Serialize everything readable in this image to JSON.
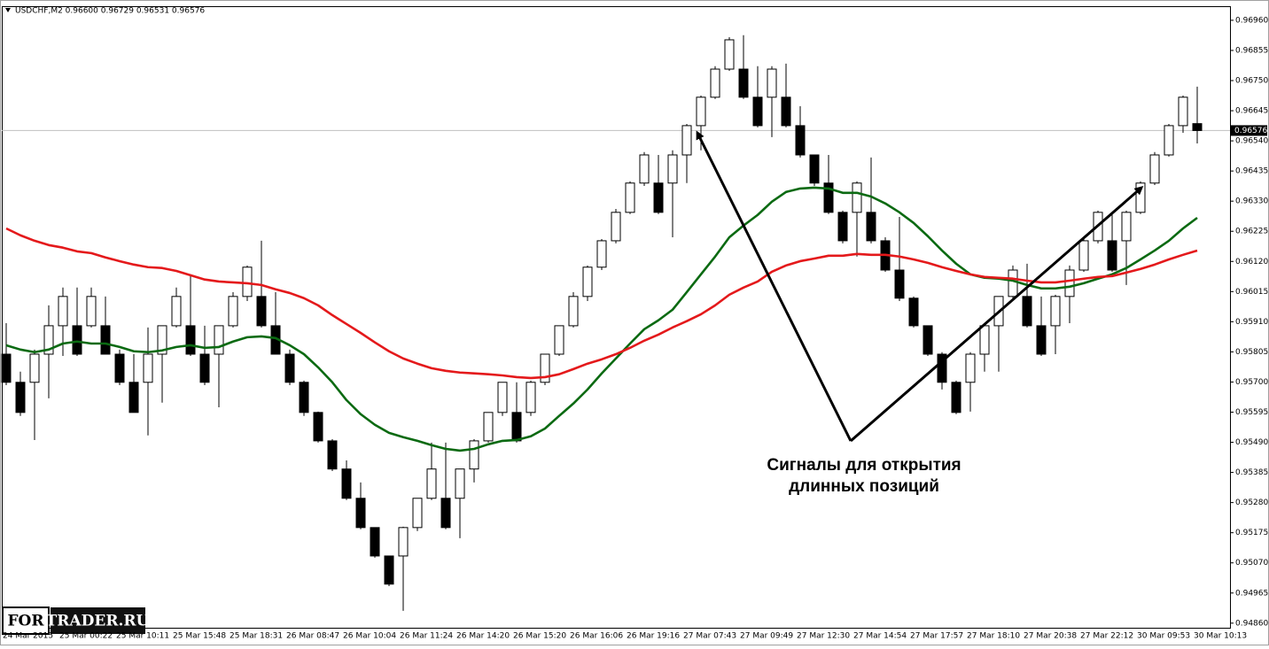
{
  "chart_data": {
    "type": "candlestick",
    "title": "USDCHF,M2  0.96600 0.96729 0.96531 0.96576",
    "annotation": [
      "Сигналы для открытия",
      "длинных позиций"
    ],
    "watermark": [
      "FOR",
      "TRADER.RU"
    ],
    "categories": [
      "24 Mar 2015",
      null,
      null,
      null,
      "25 Mar 00:22",
      null,
      null,
      null,
      "25 Mar 10:11",
      null,
      null,
      null,
      "25 Mar 15:48",
      null,
      null,
      null,
      "25 Mar 18:31",
      null,
      null,
      null,
      "26 Mar 08:47",
      null,
      null,
      null,
      "26 Mar 10:04",
      null,
      null,
      null,
      "26 Mar 11:24",
      null,
      null,
      null,
      "26 Mar 14:20",
      null,
      null,
      null,
      "26 Mar 15:20",
      null,
      null,
      null,
      "26 Mar 16:06",
      null,
      null,
      null,
      "26 Mar 19:16",
      null,
      null,
      null,
      "27 Mar 07:43",
      null,
      null,
      null,
      "27 Mar 09:49",
      null,
      null,
      null,
      "27 Mar 12:30",
      null,
      null,
      null,
      "27 Mar 14:54",
      null,
      null,
      null,
      "27 Mar 17:57",
      null,
      null,
      null,
      "27 Mar 18:10",
      null,
      null,
      null,
      "27 Mar 20:38",
      null,
      null,
      null,
      "27 Mar 22:12",
      null,
      null,
      null,
      "30 Mar 09:53",
      null,
      null,
      null,
      "30 Mar 10:13"
    ],
    "open": [
      0.95797,
      0.95699,
      0.95699,
      0.95797,
      0.95896,
      0.95896,
      0.95896,
      0.95896,
      0.95797,
      0.95699,
      0.95699,
      0.95797,
      0.95896,
      0.95896,
      0.95797,
      0.95797,
      0.95896,
      0.95998,
      0.95998,
      0.95896,
      0.95797,
      0.95699,
      0.95594,
      0.95495,
      0.95397,
      0.95295,
      0.95193,
      0.95094,
      0.95094,
      0.95193,
      0.95295,
      0.95295,
      0.95295,
      0.95397,
      0.95495,
      0.95594,
      0.95594,
      0.95594,
      0.95699,
      0.95797,
      0.95896,
      0.95998,
      0.961,
      0.96192,
      0.96291,
      0.96393,
      0.96393,
      0.96393,
      0.96491,
      0.96593,
      0.96692,
      0.9679,
      0.9679,
      0.96692,
      0.96692,
      0.96692,
      0.96593,
      0.96491,
      0.96393,
      0.96291,
      0.96291,
      0.96291,
      0.96192,
      0.9609,
      0.95992,
      0.95896,
      0.95797,
      0.95699,
      0.95699,
      0.95797,
      0.95896,
      0.95998,
      0.95998,
      0.95896,
      0.95896,
      0.95998,
      0.9609,
      0.96192,
      0.96192,
      0.96192,
      0.96291,
      0.96393,
      0.96491,
      0.96593,
      0.966
    ],
    "high": [
      0.95905,
      0.95736,
      0.95813,
      0.95967,
      0.96029,
      0.96029,
      0.96029,
      0.95998,
      0.95813,
      0.95797,
      0.9589,
      0.95896,
      0.96029,
      0.96075,
      0.95896,
      0.95896,
      0.96013,
      0.96106,
      0.96192,
      0.96013,
      0.95813,
      0.95705,
      0.95597,
      0.95501,
      0.95427,
      0.9535,
      0.95193,
      0.95094,
      0.95196,
      0.95295,
      0.95489,
      0.95489,
      0.95397,
      0.95501,
      0.95594,
      0.95699,
      0.95699,
      0.95705,
      0.95797,
      0.95896,
      0.96013,
      0.96106,
      0.96198,
      0.96303,
      0.96399,
      0.96501,
      0.96491,
      0.96507,
      0.96599,
      0.96698,
      0.968,
      0.96901,
      0.96908,
      0.968,
      0.968,
      0.96809,
      0.96661,
      0.96491,
      0.96491,
      0.96297,
      0.96399,
      0.96482,
      0.96204,
      0.96275,
      0.95998,
      0.95896,
      0.95804,
      0.95705,
      0.95804,
      0.95905,
      0.95998,
      0.96106,
      0.96112,
      0.95998,
      0.96004,
      0.96106,
      0.96204,
      0.96297,
      0.96291,
      0.96297,
      0.96399,
      0.96501,
      0.96599,
      0.96698,
      0.96729
    ],
    "low": [
      0.95689,
      0.95582,
      0.95498,
      0.95643,
      0.95791,
      0.95791,
      0.9589,
      0.95797,
      0.95689,
      0.95594,
      0.95514,
      0.95628,
      0.9589,
      0.95791,
      0.95689,
      0.95612,
      0.9589,
      0.95982,
      0.9589,
      0.95797,
      0.95689,
      0.95582,
      0.95489,
      0.9539,
      0.95289,
      0.95187,
      0.95088,
      0.94989,
      0.94903,
      0.95181,
      0.95289,
      0.95187,
      0.95156,
      0.9535,
      0.95489,
      0.95582,
      0.95489,
      0.95582,
      0.95689,
      0.95791,
      0.9589,
      0.95982,
      0.9609,
      0.96183,
      0.96285,
      0.96383,
      0.96285,
      0.96204,
      0.96393,
      0.96507,
      0.96686,
      0.96784,
      0.96686,
      0.96587,
      0.96553,
      0.96587,
      0.96482,
      0.96383,
      0.96285,
      0.96183,
      0.96137,
      0.96183,
      0.96084,
      0.95982,
      0.9589,
      0.95791,
      0.95674,
      0.95588,
      0.95597,
      0.95736,
      0.95736,
      0.95982,
      0.9589,
      0.95791,
      0.95797,
      0.95905,
      0.96084,
      0.96183,
      0.96084,
      0.96038,
      0.96285,
      0.96386,
      0.96485,
      0.96568,
      0.96531
    ],
    "close": [
      0.95699,
      0.95594,
      0.95797,
      0.95896,
      0.95998,
      0.95797,
      0.95998,
      0.95797,
      0.95699,
      0.95594,
      0.95797,
      0.95896,
      0.95998,
      0.95797,
      0.95699,
      0.95896,
      0.95998,
      0.961,
      0.95896,
      0.95797,
      0.95699,
      0.95594,
      0.95495,
      0.95397,
      0.95295,
      0.95193,
      0.95094,
      0.94996,
      0.95193,
      0.95295,
      0.95397,
      0.95193,
      0.95397,
      0.95495,
      0.95594,
      0.95699,
      0.95495,
      0.95699,
      0.95797,
      0.95896,
      0.95998,
      0.961,
      0.96192,
      0.96291,
      0.96393,
      0.96491,
      0.96291,
      0.96491,
      0.96593,
      0.96692,
      0.9679,
      0.96892,
      0.96692,
      0.96593,
      0.9679,
      0.96593,
      0.96491,
      0.96393,
      0.96291,
      0.96192,
      0.96393,
      0.96192,
      0.9609,
      0.95992,
      0.95896,
      0.95797,
      0.95699,
      0.95594,
      0.95797,
      0.95896,
      0.95998,
      0.9609,
      0.95896,
      0.95797,
      0.95998,
      0.9609,
      0.96192,
      0.96291,
      0.9609,
      0.96291,
      0.96393,
      0.96491,
      0.96593,
      0.96692,
      0.96576
    ],
    "lines": [
      {
        "color": "#0b6a12",
        "values": [
          0.95828,
          0.95813,
          0.95804,
          0.95813,
          0.95834,
          0.95841,
          0.95834,
          0.95834,
          0.95822,
          0.95807,
          0.95804,
          0.9581,
          0.95822,
          0.95828,
          0.95819,
          0.95822,
          0.95841,
          0.95856,
          0.95859,
          0.95853,
          0.95828,
          0.95797,
          0.95751,
          0.95699,
          0.95637,
          0.95588,
          0.95551,
          0.95523,
          0.95508,
          0.95495,
          0.9548,
          0.95467,
          0.95461,
          0.95467,
          0.95483,
          0.95495,
          0.95498,
          0.95511,
          0.95538,
          0.95582,
          0.95625,
          0.95674,
          0.9573,
          0.95782,
          0.95834,
          0.95884,
          0.95915,
          0.95952,
          0.96013,
          0.96075,
          0.96137,
          0.96204,
          0.96245,
          0.96282,
          0.96328,
          0.96362,
          0.96374,
          0.96377,
          0.96374,
          0.96359,
          0.96359,
          0.96346,
          0.96322,
          0.96291,
          0.96254,
          0.96208,
          0.96158,
          0.96112,
          0.96075,
          0.96063,
          0.9606,
          0.96053,
          0.96038,
          0.96026,
          0.96026,
          0.96032,
          0.96044,
          0.9606,
          0.96075,
          0.96097,
          0.96127,
          0.96158,
          0.96192,
          0.96235,
          0.96272
        ]
      },
      {
        "color": "#e4191b",
        "values": [
          0.96235,
          0.96211,
          0.96192,
          0.96177,
          0.96168,
          0.96155,
          0.96149,
          0.96134,
          0.96121,
          0.96109,
          0.961,
          0.96097,
          0.96087,
          0.96072,
          0.96057,
          0.9605,
          0.96047,
          0.96044,
          0.96038,
          0.96023,
          0.9601,
          0.95992,
          0.95967,
          0.95933,
          0.95902,
          0.95871,
          0.95838,
          0.95807,
          0.95782,
          0.95764,
          0.95748,
          0.95739,
          0.95733,
          0.9573,
          0.95727,
          0.95723,
          0.95717,
          0.95714,
          0.95717,
          0.95727,
          0.95745,
          0.95764,
          0.95779,
          0.95797,
          0.95819,
          0.95844,
          0.95865,
          0.9589,
          0.95912,
          0.95936,
          0.95967,
          0.96004,
          0.96029,
          0.9605,
          0.96084,
          0.96106,
          0.96121,
          0.9613,
          0.9614,
          0.9614,
          0.96146,
          0.96143,
          0.96143,
          0.96137,
          0.96127,
          0.96115,
          0.961,
          0.96087,
          0.96075,
          0.96066,
          0.96063,
          0.9606,
          0.96053,
          0.96047,
          0.96047,
          0.96053,
          0.9606,
          0.96066,
          0.96069,
          0.96081,
          0.96094,
          0.96109,
          0.96127,
          0.96143,
          0.96158
        ]
      }
    ],
    "last_price": 0.96576,
    "ylim": [
      0.94844,
      0.97006
    ],
    "yticks": [
      {
        "value": 0.9696,
        "label": "0.96960"
      },
      {
        "value": 0.96855,
        "label": "0.96855"
      },
      {
        "value": 0.9675,
        "label": "0.96750"
      },
      {
        "value": 0.96645,
        "label": "0.96645"
      },
      {
        "value": 0.9654,
        "label": "0.96540"
      },
      {
        "value": 0.96435,
        "label": "0.96435"
      },
      {
        "value": 0.9633,
        "label": "0.96330"
      },
      {
        "value": 0.96225,
        "label": "0.96225"
      },
      {
        "value": 0.9612,
        "label": "0.96120"
      },
      {
        "value": 0.96015,
        "label": "0.96015"
      },
      {
        "value": 0.9591,
        "label": "0.95910"
      },
      {
        "value": 0.95805,
        "label": "0.95805"
      },
      {
        "value": 0.957,
        "label": "0.95700"
      },
      {
        "value": 0.95595,
        "label": "0.95595"
      },
      {
        "value": 0.9549,
        "label": "0.95490"
      },
      {
        "value": 0.95385,
        "label": "0.95385"
      },
      {
        "value": 0.9528,
        "label": "0.95280"
      },
      {
        "value": 0.95175,
        "label": "0.95175"
      },
      {
        "value": 0.9507,
        "label": "0.95070"
      },
      {
        "value": 0.94965,
        "label": "0.94965"
      },
      {
        "value": 0.9486,
        "label": "0.94860"
      }
    ]
  }
}
